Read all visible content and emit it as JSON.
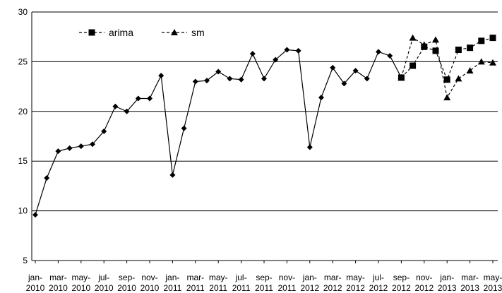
{
  "chart_data": {
    "type": "line",
    "title": "",
    "xlabel": "",
    "ylabel": "",
    "ylim": [
      5,
      30
    ],
    "yticks": [
      5,
      10,
      15,
      20,
      25,
      30
    ],
    "grid": "horizontal",
    "legend_position": "top-left",
    "x_tick_labels": [
      [
        "jan-",
        "2010"
      ],
      [
        "mar-",
        "2010"
      ],
      [
        "may-",
        "2010"
      ],
      [
        "jul-",
        "2010"
      ],
      [
        "sep-",
        "2010"
      ],
      [
        "nov-",
        "2010"
      ],
      [
        "jan-",
        "2011"
      ],
      [
        "mar-",
        "2011"
      ],
      [
        "may-",
        "2011"
      ],
      [
        "jul-",
        "2011"
      ],
      [
        "sep-",
        "2011"
      ],
      [
        "nov-",
        "2011"
      ],
      [
        "jan-",
        "2012"
      ],
      [
        "mar-",
        "2012"
      ],
      [
        "may-",
        "2012"
      ],
      [
        "jul-",
        "2012"
      ],
      [
        "sep-",
        "2012"
      ],
      [
        "nov-",
        "2012"
      ],
      [
        "jan-",
        "2013"
      ],
      [
        "mar-",
        "2013"
      ],
      [
        "may-",
        "2013"
      ]
    ],
    "series": [
      {
        "name": "",
        "marker": "diamond",
        "style": "solid",
        "start_month_index": 0,
        "values": [
          9.6,
          13.3,
          16.0,
          16.3,
          16.5,
          16.7,
          18.0,
          20.5,
          20.0,
          21.3,
          21.3,
          23.6,
          13.6,
          18.3,
          23.0,
          23.1,
          24.0,
          23.3,
          23.2,
          25.8,
          23.3,
          25.2,
          26.2,
          26.1,
          16.4,
          21.4,
          24.4,
          22.8,
          24.1,
          23.3,
          26.0,
          25.6,
          23.4
        ]
      },
      {
        "name": "arima",
        "marker": "square",
        "style": "dashed",
        "start_month_index": 32,
        "values": [
          23.4,
          24.6,
          26.5,
          26.1,
          23.2,
          26.2,
          26.4,
          27.1,
          27.4
        ]
      },
      {
        "name": "sm",
        "marker": "triangle",
        "style": "dashed",
        "start_month_index": 32,
        "values": [
          23.4,
          27.4,
          26.7,
          27.2,
          21.4,
          23.3,
          24.1,
          25.0,
          24.9
        ]
      }
    ]
  }
}
